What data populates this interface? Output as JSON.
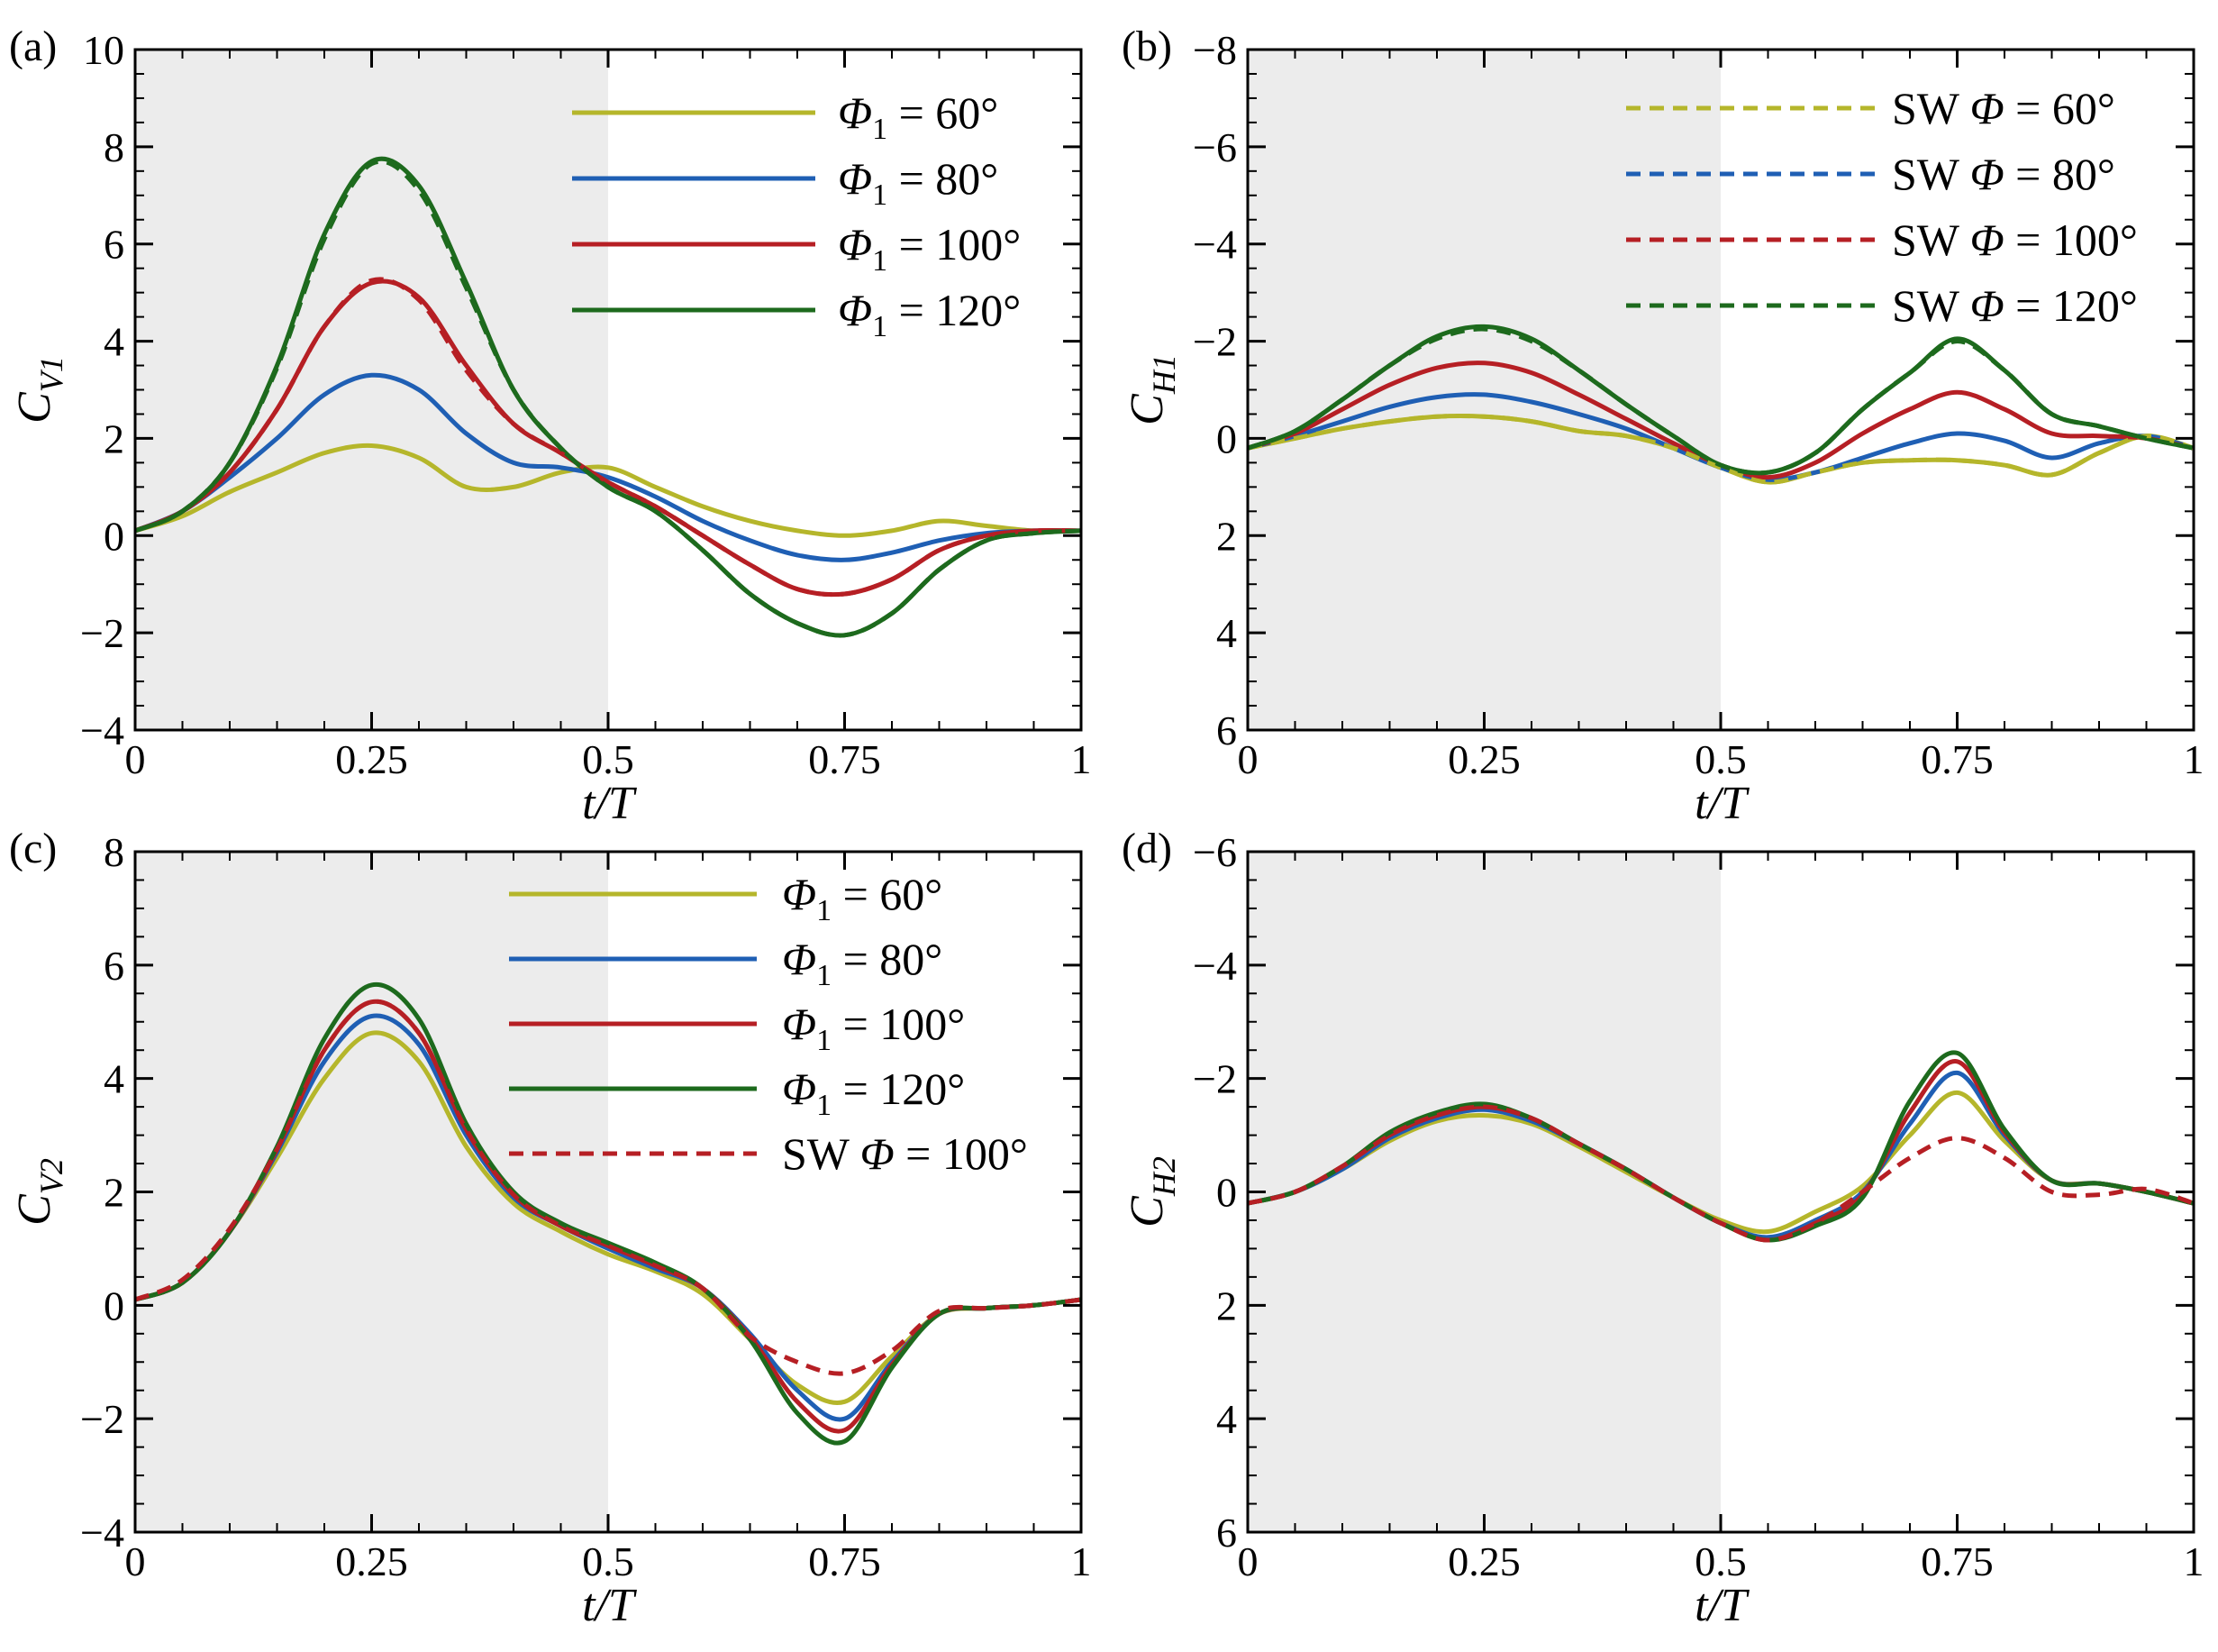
{
  "figure": {
    "colors": {
      "phi60": "#b5b62b",
      "phi80": "#1f5fb4",
      "phi100": "#b61f24",
      "phi120": "#1d6a1d",
      "shade": "#ececec",
      "axis": "#000000"
    }
  },
  "chart_data": [
    {
      "type": "line",
      "panel_label": "(a)",
      "ylabel_main": "C",
      "ylabel_sub": "V1",
      "xlabel": "t/T",
      "xlim": [
        0,
        1
      ],
      "ylim": [
        -4,
        10
      ],
      "y_inverted": false,
      "shaded_range": [
        0,
        0.5
      ],
      "x_ticks": [
        0,
        0.25,
        0.5,
        0.75,
        1
      ],
      "x_tick_labels": [
        "0",
        "0.25",
        "0.5",
        "0.75",
        "1"
      ],
      "y_ticks": [
        -4,
        -2,
        0,
        2,
        4,
        6,
        8,
        10
      ],
      "y_tick_labels": [
        "−4",
        "−2",
        "0",
        "2",
        "4",
        "6",
        "8",
        "10"
      ],
      "legend": {
        "position": "top-right",
        "entries": [
          {
            "symbol": "Φ",
            "sub": "1",
            "text": "= 60°",
            "color": "#b5b62b",
            "dashed": false
          },
          {
            "symbol": "Φ",
            "sub": "1",
            "text": "= 80°",
            "color": "#1f5fb4",
            "dashed": false
          },
          {
            "symbol": "Φ",
            "sub": "1",
            "text": "= 100°",
            "color": "#b61f24",
            "dashed": false
          },
          {
            "symbol": "Φ",
            "sub": "1",
            "text": "= 120°",
            "color": "#1d6a1d",
            "dashed": false
          }
        ]
      },
      "x": [
        0,
        0.05,
        0.1,
        0.15,
        0.2,
        0.25,
        0.3,
        0.35,
        0.4,
        0.45,
        0.5,
        0.55,
        0.6,
        0.65,
        0.7,
        0.75,
        0.8,
        0.85,
        0.9,
        0.95,
        1.0
      ],
      "series": [
        {
          "name": "Φ1 = 60°",
          "color": "#b5b62b",
          "dash": false,
          "values": [
            0.1,
            0.4,
            0.9,
            1.3,
            1.7,
            1.85,
            1.6,
            1.0,
            1.0,
            1.3,
            1.4,
            1.0,
            0.6,
            0.3,
            0.1,
            0.0,
            0.1,
            0.3,
            0.2,
            0.1,
            0.1
          ]
        },
        {
          "name": "Φ1 = 80°",
          "color": "#1f5fb4",
          "dash": false,
          "values": [
            0.1,
            0.5,
            1.2,
            2.0,
            2.9,
            3.3,
            3.0,
            2.1,
            1.5,
            1.4,
            1.2,
            0.8,
            0.3,
            -0.1,
            -0.4,
            -0.5,
            -0.35,
            -0.1,
            0.05,
            0.1,
            0.1
          ]
        },
        {
          "name": "Φ1 = 100°",
          "color": "#b61f24",
          "dash": false,
          "values": [
            0.1,
            0.5,
            1.3,
            2.6,
            4.3,
            5.2,
            4.9,
            3.5,
            2.3,
            1.7,
            1.1,
            0.6,
            0.0,
            -0.6,
            -1.1,
            -1.2,
            -0.9,
            -0.3,
            0.0,
            0.1,
            0.1
          ]
        },
        {
          "name": "Φ1 = 120°",
          "color": "#1d6a1d",
          "dash": false,
          "values": [
            0.1,
            0.5,
            1.5,
            3.5,
            6.2,
            7.7,
            7.2,
            5.2,
            3.0,
            1.8,
            1.0,
            0.5,
            -0.3,
            -1.2,
            -1.8,
            -2.05,
            -1.6,
            -0.7,
            -0.1,
            0.05,
            0.1
          ]
        },
        {
          "name": "SW Φ = 100°",
          "color": "#b61f24",
          "dash": true,
          "values": [
            0.1,
            0.5,
            1.3,
            2.6,
            4.3,
            5.25,
            4.85,
            3.4,
            2.3,
            1.7,
            1.1,
            0.6,
            0.0,
            -0.6,
            -1.1,
            -1.2,
            -0.9,
            -0.3,
            0.0,
            0.1,
            0.1
          ]
        },
        {
          "name": "SW Φ = 120°",
          "color": "#1d6a1d",
          "dash": true,
          "values": [
            0.1,
            0.5,
            1.5,
            3.45,
            6.1,
            7.65,
            7.1,
            5.1,
            3.0,
            1.8,
            1.0,
            0.5,
            -0.3,
            -1.2,
            -1.8,
            -2.05,
            -1.6,
            -0.7,
            -0.1,
            0.05,
            0.1
          ]
        }
      ]
    },
    {
      "type": "line",
      "panel_label": "(b)",
      "ylabel_main": "C",
      "ylabel_sub": "H1",
      "xlabel": "t/T",
      "xlim": [
        0,
        1
      ],
      "ylim": [
        -8,
        6
      ],
      "y_inverted": true,
      "shaded_range": [
        0,
        0.5
      ],
      "x_ticks": [
        0,
        0.25,
        0.5,
        0.75,
        1
      ],
      "x_tick_labels": [
        "0",
        "0.25",
        "0.5",
        "0.75",
        "1"
      ],
      "y_ticks": [
        -8,
        -6,
        -4,
        -2,
        0,
        2,
        4,
        6
      ],
      "y_tick_labels": [
        "−8",
        "−6",
        "−4",
        "−2",
        "0",
        "2",
        "4",
        "6"
      ],
      "legend": {
        "position": "top-right",
        "entries": [
          {
            "symbol": "SW Φ",
            "sub": "",
            "text": "= 60°",
            "color": "#b5b62b",
            "dashed": true
          },
          {
            "symbol": "SW Φ",
            "sub": "",
            "text": "= 80°",
            "color": "#1f5fb4",
            "dashed": true
          },
          {
            "symbol": "SW Φ",
            "sub": "",
            "text": "= 100°",
            "color": "#b61f24",
            "dashed": true
          },
          {
            "symbol": "SW Φ",
            "sub": "",
            "text": "= 120°",
            "color": "#1d6a1d",
            "dashed": true
          }
        ]
      },
      "x": [
        0,
        0.05,
        0.1,
        0.15,
        0.2,
        0.25,
        0.3,
        0.35,
        0.4,
        0.45,
        0.5,
        0.55,
        0.6,
        0.65,
        0.7,
        0.75,
        0.8,
        0.85,
        0.9,
        0.95,
        1.0
      ],
      "series": [
        {
          "name": "Φ1 = 60°",
          "color": "#b5b62b",
          "dash": false,
          "values": [
            0.2,
            0.0,
            -0.2,
            -0.35,
            -0.45,
            -0.45,
            -0.35,
            -0.15,
            -0.05,
            0.2,
            0.6,
            0.9,
            0.7,
            0.5,
            0.45,
            0.45,
            0.55,
            0.75,
            0.3,
            -0.05,
            0.2
          ]
        },
        {
          "name": "Φ1 = 80°",
          "color": "#1f5fb4",
          "dash": false,
          "values": [
            0.2,
            -0.05,
            -0.35,
            -0.65,
            -0.85,
            -0.9,
            -0.75,
            -0.5,
            -0.2,
            0.2,
            0.6,
            0.85,
            0.7,
            0.4,
            0.1,
            -0.1,
            0.05,
            0.4,
            0.1,
            -0.05,
            0.2
          ]
        },
        {
          "name": "Φ1 = 100°",
          "color": "#b61f24",
          "dash": false,
          "values": [
            0.2,
            -0.1,
            -0.6,
            -1.1,
            -1.45,
            -1.55,
            -1.35,
            -0.9,
            -0.4,
            0.1,
            0.55,
            0.8,
            0.5,
            -0.1,
            -0.6,
            -0.95,
            -0.6,
            -0.1,
            -0.05,
            0.0,
            0.2
          ]
        },
        {
          "name": "Φ1 = 120°",
          "color": "#1d6a1d",
          "dash": false,
          "values": [
            0.2,
            -0.15,
            -0.8,
            -1.5,
            -2.1,
            -2.3,
            -2.05,
            -1.4,
            -0.7,
            -0.05,
            0.55,
            0.7,
            0.3,
            -0.6,
            -1.35,
            -2.05,
            -1.4,
            -0.5,
            -0.25,
            0.0,
            0.2
          ]
        },
        {
          "name": "SW Φ = 60°",
          "color": "#b5b62b",
          "dash": true,
          "values": [
            0.2,
            0.0,
            -0.2,
            -0.35,
            -0.45,
            -0.45,
            -0.35,
            -0.15,
            -0.05,
            0.2,
            0.6,
            0.9,
            0.7,
            0.5,
            0.45,
            0.45,
            0.55,
            0.75,
            0.3,
            -0.05,
            0.2
          ]
        },
        {
          "name": "SW Φ = 120°",
          "color": "#1d6a1d",
          "dash": true,
          "values": [
            0.2,
            -0.15,
            -0.8,
            -1.5,
            -2.05,
            -2.25,
            -2.0,
            -1.4,
            -0.7,
            -0.05,
            0.55,
            0.7,
            0.3,
            -0.6,
            -1.35,
            -2.0,
            -1.4,
            -0.5,
            -0.25,
            0.0,
            0.2
          ]
        }
      ]
    },
    {
      "type": "line",
      "panel_label": "(c)",
      "ylabel_main": "C",
      "ylabel_sub": "V2",
      "xlabel": "t/T",
      "xlim": [
        0,
        1
      ],
      "ylim": [
        -4,
        8
      ],
      "y_inverted": false,
      "shaded_range": [
        0,
        0.5
      ],
      "x_ticks": [
        0,
        0.25,
        0.5,
        0.75,
        1
      ],
      "x_tick_labels": [
        "0",
        "0.25",
        "0.5",
        "0.75",
        "1"
      ],
      "y_ticks": [
        -4,
        -2,
        0,
        2,
        4,
        6,
        8
      ],
      "y_tick_labels": [
        "−4",
        "−2",
        "0",
        "2",
        "4",
        "6",
        "8"
      ],
      "legend": {
        "position": "top-right",
        "entries": [
          {
            "symbol": "Φ",
            "sub": "1",
            "text": "= 60°",
            "color": "#b5b62b",
            "dashed": false
          },
          {
            "symbol": "Φ",
            "sub": "1",
            "text": "= 80°",
            "color": "#1f5fb4",
            "dashed": false
          },
          {
            "symbol": "Φ",
            "sub": "1",
            "text": "= 100°",
            "color": "#b61f24",
            "dashed": false
          },
          {
            "symbol": "Φ",
            "sub": "1",
            "text": "= 120°",
            "color": "#1d6a1d",
            "dashed": false
          },
          {
            "symbol": "SW Φ",
            "sub": "",
            "text": "= 100°",
            "color": "#b61f24",
            "dashed": true
          }
        ]
      },
      "x": [
        0,
        0.05,
        0.1,
        0.15,
        0.2,
        0.25,
        0.3,
        0.35,
        0.4,
        0.45,
        0.5,
        0.55,
        0.6,
        0.65,
        0.7,
        0.75,
        0.8,
        0.85,
        0.9,
        0.95,
        1.0
      ],
      "series": [
        {
          "name": "Φ1 = 60°",
          "color": "#b5b62b",
          "dash": false,
          "values": [
            0.1,
            0.4,
            1.3,
            2.6,
            4.0,
            4.8,
            4.3,
            2.8,
            1.8,
            1.3,
            0.9,
            0.6,
            0.2,
            -0.6,
            -1.4,
            -1.7,
            -0.9,
            -0.15,
            -0.05,
            0.0,
            0.1
          ]
        },
        {
          "name": "Φ1 = 80°",
          "color": "#1f5fb4",
          "dash": false,
          "values": [
            0.1,
            0.4,
            1.3,
            2.7,
            4.3,
            5.1,
            4.6,
            3.0,
            1.9,
            1.4,
            1.0,
            0.65,
            0.3,
            -0.5,
            -1.5,
            -2.0,
            -1.0,
            -0.15,
            -0.05,
            0.0,
            0.1
          ]
        },
        {
          "name": "Φ1 = 100°",
          "color": "#b61f24",
          "dash": false,
          "values": [
            0.1,
            0.4,
            1.3,
            2.75,
            4.5,
            5.35,
            4.8,
            3.1,
            1.95,
            1.4,
            1.05,
            0.7,
            0.3,
            -0.55,
            -1.7,
            -2.2,
            -1.05,
            -0.15,
            -0.05,
            0.0,
            0.1
          ]
        },
        {
          "name": "Φ1 = 120°",
          "color": "#1d6a1d",
          "dash": false,
          "values": [
            0.1,
            0.4,
            1.3,
            2.8,
            4.7,
            5.65,
            5.05,
            3.2,
            2.0,
            1.45,
            1.1,
            0.75,
            0.3,
            -0.6,
            -1.9,
            -2.4,
            -1.1,
            -0.15,
            -0.05,
            0.0,
            0.1
          ]
        },
        {
          "name": "SW Φ = 100°",
          "color": "#b61f24",
          "dash": true,
          "values": [
            0.1,
            0.45,
            1.35,
            2.75,
            4.5,
            5.35,
            4.8,
            3.1,
            1.95,
            1.4,
            1.05,
            0.7,
            0.3,
            -0.55,
            -1.0,
            -1.2,
            -0.8,
            -0.1,
            -0.05,
            0.0,
            0.1
          ]
        }
      ]
    },
    {
      "type": "line",
      "panel_label": "(d)",
      "ylabel_main": "C",
      "ylabel_sub": "H2",
      "xlabel": "t/T",
      "xlim": [
        0,
        1
      ],
      "ylim": [
        -6,
        6
      ],
      "y_inverted": true,
      "shaded_range": [
        0,
        0.5
      ],
      "x_ticks": [
        0,
        0.25,
        0.5,
        0.75,
        1
      ],
      "x_tick_labels": [
        "0",
        "0.25",
        "0.5",
        "0.75",
        "1"
      ],
      "y_ticks": [
        -6,
        -4,
        -2,
        0,
        2,
        4,
        6
      ],
      "y_tick_labels": [
        "−6",
        "−4",
        "−2",
        "0",
        "2",
        "4",
        "6"
      ],
      "legend": null,
      "x": [
        0,
        0.05,
        0.1,
        0.15,
        0.2,
        0.25,
        0.3,
        0.35,
        0.4,
        0.45,
        0.5,
        0.55,
        0.6,
        0.65,
        0.7,
        0.75,
        0.8,
        0.85,
        0.9,
        0.95,
        1.0
      ],
      "series": [
        {
          "name": "Φ1 = 60°",
          "color": "#b5b62b",
          "dash": false,
          "values": [
            0.2,
            0.0,
            -0.4,
            -0.9,
            -1.25,
            -1.35,
            -1.2,
            -0.8,
            -0.35,
            0.1,
            0.5,
            0.7,
            0.35,
            -0.1,
            -1.0,
            -1.75,
            -0.9,
            -0.2,
            -0.15,
            0.0,
            0.2
          ]
        },
        {
          "name": "Φ1 = 80°",
          "color": "#1f5fb4",
          "dash": false,
          "values": [
            0.2,
            0.0,
            -0.4,
            -0.95,
            -1.3,
            -1.45,
            -1.25,
            -0.85,
            -0.4,
            0.1,
            0.55,
            0.8,
            0.5,
            0.0,
            -1.2,
            -2.1,
            -1.0,
            -0.2,
            -0.15,
            0.0,
            0.2
          ]
        },
        {
          "name": "Φ1 = 100°",
          "color": "#b61f24",
          "dash": false,
          "values": [
            0.2,
            0.0,
            -0.45,
            -1.0,
            -1.35,
            -1.5,
            -1.3,
            -0.85,
            -0.4,
            0.1,
            0.55,
            0.85,
            0.55,
            0.05,
            -1.4,
            -2.3,
            -1.05,
            -0.2,
            -0.15,
            0.0,
            0.2
          ]
        },
        {
          "name": "Φ1 = 120°",
          "color": "#1d6a1d",
          "dash": false,
          "values": [
            0.2,
            0.0,
            -0.45,
            -1.05,
            -1.4,
            -1.55,
            -1.3,
            -0.85,
            -0.4,
            0.1,
            0.55,
            0.85,
            0.6,
            0.1,
            -1.6,
            -2.45,
            -1.1,
            -0.2,
            -0.15,
            0.0,
            0.2
          ]
        },
        {
          "name": "SW Φ = 100°",
          "color": "#b61f24",
          "dash": true,
          "values": [
            0.2,
            0.0,
            -0.45,
            -1.0,
            -1.35,
            -1.5,
            -1.3,
            -0.85,
            -0.4,
            0.1,
            0.55,
            0.85,
            0.55,
            0.0,
            -0.6,
            -0.95,
            -0.6,
            0.0,
            0.05,
            -0.05,
            0.2
          ]
        }
      ]
    }
  ]
}
